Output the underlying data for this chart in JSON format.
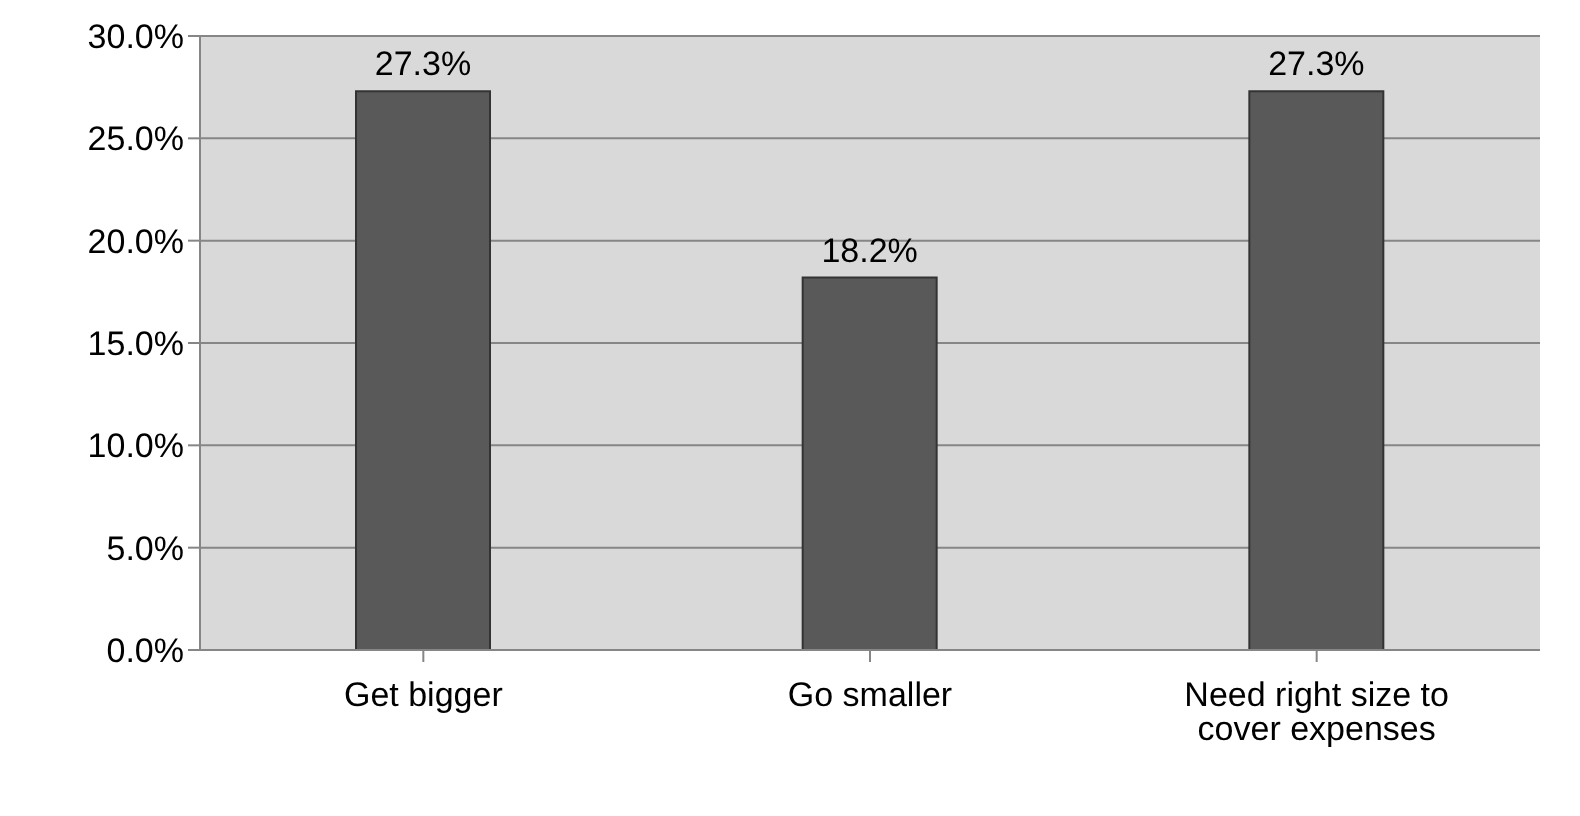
{
  "chart_data": {
    "type": "bar",
    "categories": [
      "Get bigger",
      "Go smaller",
      "Need right size to cover expenses"
    ],
    "values": [
      27.3,
      18.2,
      27.3
    ],
    "color": "#595959",
    "value_labels": [
      "27.3%",
      "18.2%",
      "27.3%"
    ],
    "ylim": [
      0,
      30
    ],
    "yticks": [
      {
        "value": 0,
        "label": "0.0%"
      },
      {
        "value": 5,
        "label": "5.0%"
      },
      {
        "value": 10,
        "label": "10.0%"
      },
      {
        "value": 15,
        "label": "15.0%"
      },
      {
        "value": 20,
        "label": "20.0%"
      },
      {
        "value": 25,
        "label": "25.0%"
      },
      {
        "value": 30,
        "label": "30.0%"
      }
    ],
    "grid": "y",
    "legend": false
  }
}
